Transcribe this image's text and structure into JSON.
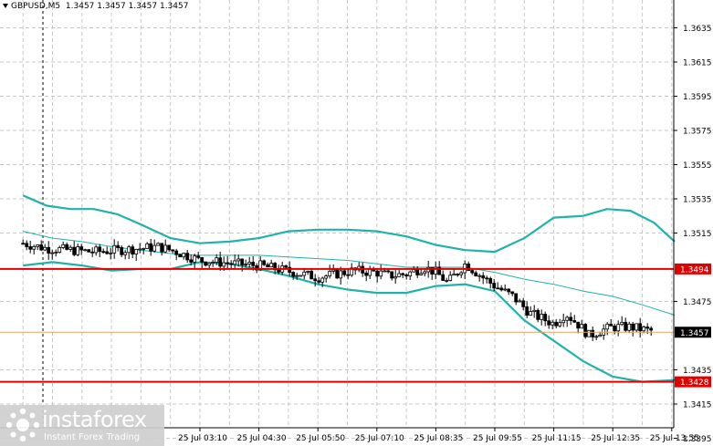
{
  "header": {
    "symbol": "GBPUSD,M5",
    "ohlc": "1.3457 1.3457 1.3457 1.3457"
  },
  "watermark": {
    "brand": "instaforex",
    "tagline": "Instant Forex Trading"
  },
  "colors": {
    "grid": "#c8c8c8",
    "candle": "#000000",
    "bands": "#20b2aa",
    "level_line": "#e00000",
    "current_price_line": "#e8a060",
    "price_badge": "#000000"
  },
  "chart_data": {
    "type": "candlestick",
    "title": "GBPUSD,M5",
    "ylim": [
      1.3388,
      1.3652
    ],
    "y_ticks": [
      1.3635,
      1.3615,
      1.3595,
      1.3575,
      1.3555,
      1.3535,
      1.3515,
      1.3475,
      1.3435,
      1.3415,
      1.3395
    ],
    "x_ticks": [
      "25 Jul 03:10",
      "25 Jul 04:30",
      "25 Jul 05:50",
      "25 Jul 07:10",
      "25 Jul 08:35",
      "25 Jul 09:55",
      "25 Jul 11:15",
      "25 Jul 12:35",
      "25 Jul 13:55"
    ],
    "x_tick_positions": [
      1,
      2,
      3,
      4,
      5,
      6,
      7,
      8,
      9
    ],
    "horizontal_levels": [
      {
        "price": 1.3494,
        "label": "1.3494"
      },
      {
        "price": 1.3428,
        "label": "1.3428"
      }
    ],
    "current_price": {
      "price": 1.3457,
      "label": "1.3457"
    },
    "close_path": [
      [
        -2,
        1.3509
      ],
      [
        -1.6,
        1.3506
      ],
      [
        -1.2,
        1.3505
      ],
      [
        -0.8,
        1.3504
      ],
      [
        -0.4,
        1.3505
      ],
      [
        0,
        1.3506
      ],
      [
        0.3,
        1.3507
      ],
      [
        0.6,
        1.3504
      ],
      [
        1,
        1.3499
      ],
      [
        1.3,
        1.3498
      ],
      [
        1.6,
        1.3497
      ],
      [
        2,
        1.3496
      ],
      [
        2.3,
        1.3494
      ],
      [
        2.6,
        1.3492
      ],
      [
        3,
        1.3489
      ],
      [
        3.3,
        1.3491
      ],
      [
        3.6,
        1.3493
      ],
      [
        4,
        1.3492
      ],
      [
        4.2,
        1.349
      ],
      [
        4.5,
        1.3491
      ],
      [
        4.8,
        1.3495
      ],
      [
        5,
        1.3492
      ],
      [
        5.2,
        1.3486
      ],
      [
        5.5,
        1.3497
      ],
      [
        5.8,
        1.3489
      ],
      [
        6,
        1.3484
      ],
      [
        6.3,
        1.3478
      ],
      [
        6.6,
        1.3468
      ],
      [
        7,
        1.3462
      ],
      [
        7.2,
        1.3468
      ],
      [
        7.4,
        1.3462
      ],
      [
        7.6,
        1.3455
      ],
      [
        7.8,
        1.3458
      ],
      [
        8,
        1.346
      ],
      [
        8.3,
        1.346
      ],
      [
        8.6,
        1.3458
      ],
      [
        8.9,
        1.3457
      ],
      [
        9.05,
        1.3457
      ]
    ],
    "series": [
      {
        "name": "",
        "type": "line",
        "points": [
          [
            -2,
            1.3537
          ],
          [
            -1.6,
            1.3531
          ],
          [
            -1.2,
            1.3529
          ],
          [
            -0.8,
            1.3529
          ],
          [
            -0.4,
            1.3526
          ],
          [
            0,
            1.352
          ],
          [
            0.5,
            1.3512
          ],
          [
            1,
            1.3509
          ],
          [
            1.5,
            1.351
          ],
          [
            2,
            1.3512
          ],
          [
            2.5,
            1.3516
          ],
          [
            3,
            1.3517
          ],
          [
            3.5,
            1.3517
          ],
          [
            4,
            1.3516
          ],
          [
            4.5,
            1.3513
          ],
          [
            5,
            1.3508
          ],
          [
            5.5,
            1.3505
          ],
          [
            6,
            1.3504
          ],
          [
            6.5,
            1.3512
          ],
          [
            7,
            1.3524
          ],
          [
            7.5,
            1.3525
          ],
          [
            7.9,
            1.3529
          ],
          [
            8.3,
            1.3528
          ],
          [
            8.7,
            1.3521
          ],
          [
            9.05,
            1.351
          ]
        ]
      },
      {
        "name": "",
        "type": "line",
        "points": [
          [
            -2,
            1.3496
          ],
          [
            -1.5,
            1.3498
          ],
          [
            -1,
            1.3496
          ],
          [
            -0.5,
            1.3493
          ],
          [
            0,
            1.3494
          ],
          [
            0.5,
            1.3494
          ],
          [
            1,
            1.3498
          ],
          [
            1.5,
            1.3497
          ],
          [
            2,
            1.3494
          ],
          [
            2.5,
            1.349
          ],
          [
            3,
            1.3485
          ],
          [
            3.5,
            1.3482
          ],
          [
            4,
            1.348
          ],
          [
            4.5,
            1.348
          ],
          [
            5,
            1.3484
          ],
          [
            5.5,
            1.3485
          ],
          [
            6,
            1.3481
          ],
          [
            6.5,
            1.3464
          ],
          [
            7,
            1.3452
          ],
          [
            7.5,
            1.344
          ],
          [
            8,
            1.3431
          ],
          [
            8.5,
            1.3428
          ],
          [
            9.05,
            1.3429
          ]
        ]
      },
      {
        "name": "",
        "type": "line",
        "points": [
          [
            -2,
            1.3516
          ],
          [
            -1.5,
            1.3512
          ],
          [
            -1,
            1.351
          ],
          [
            -0.5,
            1.3507
          ],
          [
            0,
            1.3505
          ],
          [
            0.5,
            1.3503
          ],
          [
            1,
            1.3502
          ],
          [
            1.5,
            1.3502
          ],
          [
            2,
            1.3502
          ],
          [
            2.5,
            1.3501
          ],
          [
            3,
            1.35
          ],
          [
            3.5,
            1.3499
          ],
          [
            4,
            1.3497
          ],
          [
            4.5,
            1.3495
          ],
          [
            5,
            1.3495
          ],
          [
            5.5,
            1.3495
          ],
          [
            6,
            1.3492
          ],
          [
            6.5,
            1.3488
          ],
          [
            7,
            1.3485
          ],
          [
            7.5,
            1.3481
          ],
          [
            8,
            1.3478
          ],
          [
            8.5,
            1.3473
          ],
          [
            9.05,
            1.3467
          ]
        ]
      }
    ]
  }
}
